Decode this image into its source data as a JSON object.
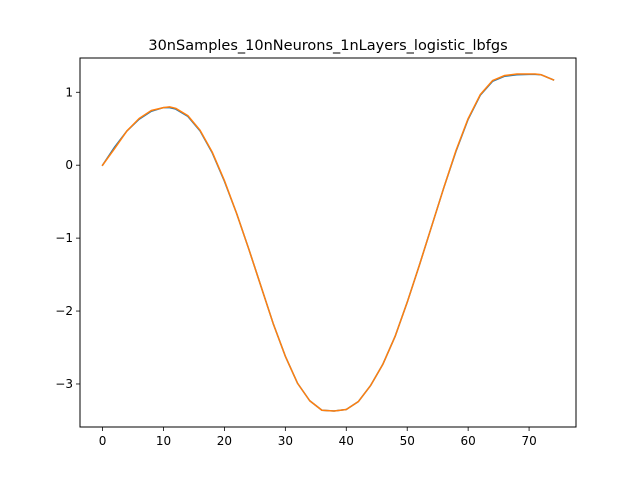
{
  "chart_data": {
    "type": "line",
    "title": "30nSamples_10nNeurons_1nLayers_logistic_lbfgs",
    "xlabel": "",
    "ylabel": "",
    "xlim": [
      -3.7,
      77.7
    ],
    "ylim": [
      -3.59,
      1.47
    ],
    "x_ticks": [
      0,
      10,
      20,
      30,
      40,
      50,
      60,
      70
    ],
    "x_tick_labels": [
      "0",
      "10",
      "20",
      "30",
      "40",
      "50",
      "60",
      "70"
    ],
    "y_ticks": [
      1,
      0,
      -1,
      -2,
      -3
    ],
    "y_tick_labels": [
      "1",
      "0",
      "−1",
      "−2",
      "−3"
    ],
    "grid": false,
    "legend": "none",
    "series": [
      {
        "color": "#1f77b4",
        "x": [
          0,
          2,
          4,
          6,
          8,
          10,
          11,
          12,
          14,
          16,
          18,
          20,
          22,
          24,
          26,
          28,
          30,
          32,
          34,
          36,
          38,
          40,
          42,
          44,
          46,
          48,
          50,
          52,
          54,
          56,
          58,
          60,
          62,
          64,
          66,
          68,
          70,
          71,
          72,
          74
        ],
        "y": [
          0.0,
          0.25,
          0.47,
          0.63,
          0.74,
          0.79,
          0.79,
          0.77,
          0.67,
          0.47,
          0.17,
          -0.22,
          -0.66,
          -1.15,
          -1.66,
          -2.17,
          -2.62,
          -2.99,
          -3.23,
          -3.36,
          -3.37,
          -3.35,
          -3.24,
          -3.02,
          -2.73,
          -2.35,
          -1.88,
          -1.37,
          -0.84,
          -0.31,
          0.19,
          0.63,
          0.96,
          1.15,
          1.22,
          1.24,
          1.245,
          1.245,
          1.24,
          1.17
        ]
      },
      {
        "color": "#ff7f0e",
        "x": [
          0,
          2,
          4,
          6,
          8,
          10,
          11,
          12,
          14,
          16,
          18,
          20,
          22,
          24,
          26,
          28,
          30,
          32,
          34,
          36,
          38,
          40,
          42,
          44,
          46,
          48,
          50,
          52,
          54,
          56,
          58,
          60,
          62,
          64,
          66,
          68,
          70,
          71,
          72,
          74
        ],
        "y": [
          0.0,
          0.23,
          0.47,
          0.64,
          0.75,
          0.79,
          0.8,
          0.78,
          0.68,
          0.48,
          0.18,
          -0.21,
          -0.66,
          -1.15,
          -1.66,
          -2.17,
          -2.62,
          -2.99,
          -3.23,
          -3.36,
          -3.37,
          -3.35,
          -3.24,
          -3.02,
          -2.73,
          -2.35,
          -1.88,
          -1.37,
          -0.84,
          -0.31,
          0.2,
          0.64,
          0.97,
          1.16,
          1.23,
          1.25,
          1.25,
          1.25,
          1.24,
          1.17
        ]
      }
    ]
  }
}
